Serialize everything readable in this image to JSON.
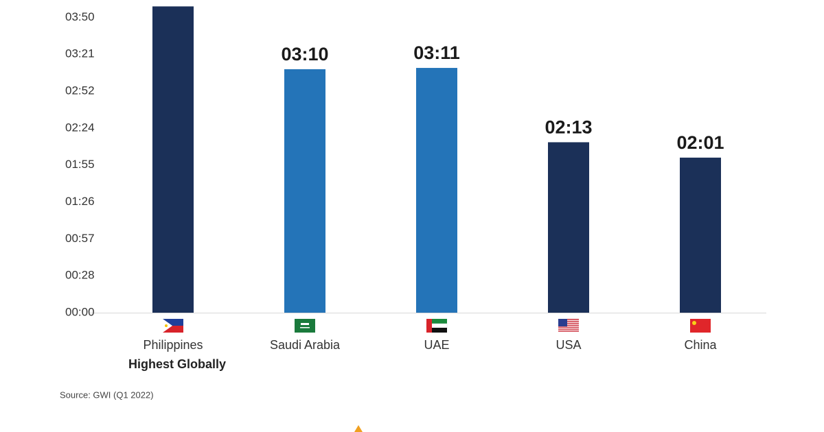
{
  "chart_data": {
    "type": "bar",
    "categories": [
      "Philippines",
      "Saudi Arabia",
      "UAE",
      "USA",
      "China"
    ],
    "values": [
      239,
      190,
      191,
      133,
      121
    ],
    "value_labels": [
      null,
      "03:10",
      "03:11",
      "02:13",
      "02:01"
    ],
    "colors": [
      "#1b3058",
      "#2474b8",
      "#2474b8",
      "#1b3058",
      "#1b3058"
    ],
    "ylim": [
      0,
      244
    ],
    "yticks": [
      {
        "value": 0,
        "label": "00:00"
      },
      {
        "value": 28.8,
        "label": "00:28"
      },
      {
        "value": 57.6,
        "label": "00:57"
      },
      {
        "value": 86.4,
        "label": "01:26"
      },
      {
        "value": 115.2,
        "label": "01:55"
      },
      {
        "value": 144,
        "label": "02:24"
      },
      {
        "value": 172.8,
        "label": "02:52"
      },
      {
        "value": 201.6,
        "label": "03:21"
      },
      {
        "value": 230.4,
        "label": "03:50"
      }
    ],
    "grid": false,
    "annotation": "Highest Globally",
    "source": "Source: GWI (Q1 2022)"
  }
}
